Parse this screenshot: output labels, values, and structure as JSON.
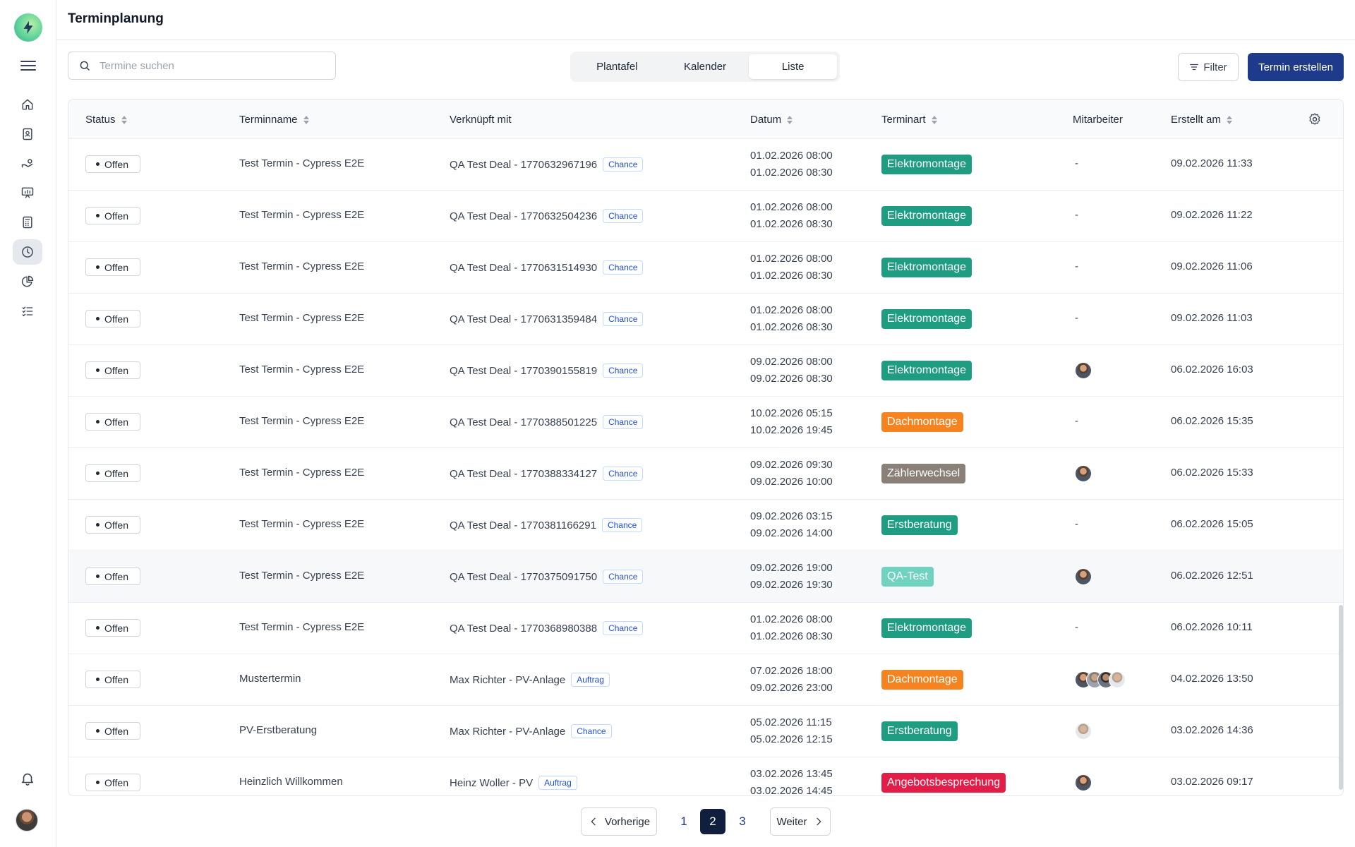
{
  "header": {
    "title": "Terminplanung"
  },
  "search": {
    "placeholder": "Termine suchen"
  },
  "views": [
    {
      "label": "Plantafel",
      "active": false
    },
    {
      "label": "Kalender",
      "active": false
    },
    {
      "label": "Liste",
      "active": true
    }
  ],
  "toolbar": {
    "filter_label": "Filter",
    "create_label": "Termin erstellen"
  },
  "sidebar": {
    "items": [
      {
        "icon": "home-icon",
        "active": false
      },
      {
        "icon": "contacts-icon",
        "active": false
      },
      {
        "icon": "deals-icon",
        "active": false
      },
      {
        "icon": "presentation-icon",
        "active": false
      },
      {
        "icon": "calculator-icon",
        "active": false
      },
      {
        "icon": "clock-icon",
        "active": true
      },
      {
        "icon": "chart-pie-icon",
        "active": false
      },
      {
        "icon": "checklist-icon",
        "active": false
      }
    ]
  },
  "table": {
    "columns": {
      "status": "Status",
      "name": "Terminname",
      "link": "Verknüpft mit",
      "date": "Datum",
      "type": "Terminart",
      "employee": "Mitarbeiter",
      "created": "Erstellt am"
    },
    "rows": [
      {
        "status": "Offen",
        "name": "Test Termin - Cypress E2E",
        "link": "QA Test Deal - 1770632967196",
        "link_type": "Chance",
        "start": "01.02.2026 08:00",
        "end": "01.02.2026 08:30",
        "type": "Elektromontage",
        "type_color": "#1f9d83",
        "employee": "-",
        "avatars": 0,
        "created": "09.02.2026 11:33"
      },
      {
        "status": "Offen",
        "name": "Test Termin - Cypress E2E",
        "link": "QA Test Deal - 1770632504236",
        "link_type": "Chance",
        "start": "01.02.2026 08:00",
        "end": "01.02.2026 08:30",
        "type": "Elektromontage",
        "type_color": "#1f9d83",
        "employee": "-",
        "avatars": 0,
        "created": "09.02.2026 11:22"
      },
      {
        "status": "Offen",
        "name": "Test Termin - Cypress E2E",
        "link": "QA Test Deal - 1770631514930",
        "link_type": "Chance",
        "start": "01.02.2026 08:00",
        "end": "01.02.2026 08:30",
        "type": "Elektromontage",
        "type_color": "#1f9d83",
        "employee": "-",
        "avatars": 0,
        "created": "09.02.2026 11:06"
      },
      {
        "status": "Offen",
        "name": "Test Termin - Cypress E2E",
        "link": "QA Test Deal - 1770631359484",
        "link_type": "Chance",
        "start": "01.02.2026 08:00",
        "end": "01.02.2026 08:30",
        "type": "Elektromontage",
        "type_color": "#1f9d83",
        "employee": "-",
        "avatars": 0,
        "created": "09.02.2026 11:03"
      },
      {
        "status": "Offen",
        "name": "Test Termin - Cypress E2E",
        "link": "QA Test Deal - 1770390155819",
        "link_type": "Chance",
        "start": "09.02.2026 08:00",
        "end": "09.02.2026 08:30",
        "type": "Elektromontage",
        "type_color": "#1f9d83",
        "employee": "",
        "avatars": 1,
        "created": "06.02.2026 16:03"
      },
      {
        "status": "Offen",
        "name": "Test Termin - Cypress E2E",
        "link": "QA Test Deal - 1770388501225",
        "link_type": "Chance",
        "start": "10.02.2026 05:15",
        "end": "10.02.2026 19:45",
        "type": "Dachmontage",
        "type_color": "#f5831f",
        "employee": "-",
        "avatars": 0,
        "created": "06.02.2026 15:35"
      },
      {
        "status": "Offen",
        "name": "Test Termin - Cypress E2E",
        "link": "QA Test Deal - 1770388334127",
        "link_type": "Chance",
        "start": "09.02.2026 09:30",
        "end": "09.02.2026 10:00",
        "type": "Zählerwechsel",
        "type_color": "#8a8078",
        "employee": "",
        "avatars": 1,
        "created": "06.02.2026 15:33"
      },
      {
        "status": "Offen",
        "name": "Test Termin - Cypress E2E",
        "link": "QA Test Deal - 1770381166291",
        "link_type": "Chance",
        "start": "09.02.2026 03:15",
        "end": "09.02.2026 14:00",
        "type": "Erstberatung",
        "type_color": "#1f9d83",
        "employee": "-",
        "avatars": 0,
        "created": "06.02.2026 15:05"
      },
      {
        "status": "Offen",
        "name": "Test Termin - Cypress E2E",
        "link": "QA Test Deal - 1770375091750",
        "link_type": "Chance",
        "start": "09.02.2026 19:00",
        "end": "09.02.2026 19:30",
        "type": "QA-Test",
        "type_color": "#6fd3bf",
        "employee": "",
        "avatars": 1,
        "created": "06.02.2026 12:51"
      },
      {
        "status": "Offen",
        "name": "Test Termin - Cypress E2E",
        "link": "QA Test Deal - 1770368980388",
        "link_type": "Chance",
        "start": "01.02.2026 08:00",
        "end": "01.02.2026 08:30",
        "type": "Elektromontage",
        "type_color": "#1f9d83",
        "employee": "-",
        "avatars": 0,
        "created": "06.02.2026 10:11"
      },
      {
        "status": "Offen",
        "name": "Mustertermin",
        "link": "Max Richter - PV-Anlage",
        "link_type": "Auftrag",
        "start": "07.02.2026 18:00",
        "end": "09.02.2026 23:00",
        "type": "Dachmontage",
        "type_color": "#f5831f",
        "employee": "",
        "avatars": 4,
        "created": "04.02.2026 13:50"
      },
      {
        "status": "Offen",
        "name": "PV-Erstberatung",
        "link": "Max Richter - PV-Anlage",
        "link_type": "Chance",
        "start": "05.02.2026 11:15",
        "end": "05.02.2026 12:15",
        "type": "Erstberatung",
        "type_color": "#1f9d83",
        "employee": "",
        "avatars": 1,
        "created": "03.02.2026 14:36"
      },
      {
        "status": "Offen",
        "name": "Heinzlich Willkommen",
        "link": "Heinz Woller - PV",
        "link_type": "Auftrag",
        "start": "03.02.2026 13:45",
        "end": "03.02.2026 14:45",
        "type": "Angebotsbesprechung",
        "type_color": "#e11d48",
        "employee": "",
        "avatars": 1,
        "created": "03.02.2026 09:17"
      }
    ]
  },
  "pagination": {
    "prev_label": "Vorherige",
    "next_label": "Weiter",
    "pages": [
      "1",
      "2",
      "3"
    ],
    "current": "2"
  }
}
